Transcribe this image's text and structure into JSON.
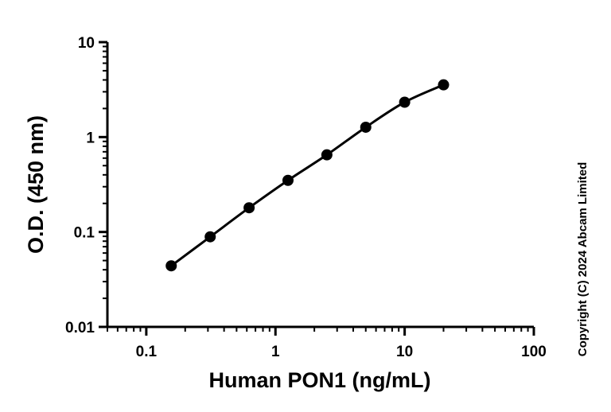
{
  "chart_data": {
    "type": "scatter",
    "xlabel": "Human PON1 (ng/mL)",
    "ylabel": "O.D. (450 nm)",
    "x_scale": "log",
    "y_scale": "log",
    "xlim": [
      0.05,
      100
    ],
    "ylim": [
      0.01,
      10
    ],
    "x_ticks": [
      {
        "value": 0.1,
        "label": "0.1"
      },
      {
        "value": 1,
        "label": "1"
      },
      {
        "value": 10,
        "label": "10"
      },
      {
        "value": 100,
        "label": "100"
      }
    ],
    "y_ticks": [
      {
        "value": 0.01,
        "label": "0.01"
      },
      {
        "value": 0.1,
        "label": "0.1"
      },
      {
        "value": 1,
        "label": "1"
      },
      {
        "value": 10,
        "label": "10"
      }
    ],
    "grid": false,
    "series": [
      {
        "x": [
          0.156,
          0.3125,
          0.625,
          1.25,
          2.5,
          5,
          10,
          20
        ],
        "y": [
          0.044,
          0.089,
          0.18,
          0.35,
          0.65,
          1.27,
          2.33,
          3.55
        ],
        "style": "markers with fitted curve",
        "color": "#000000"
      }
    ],
    "annotation": "Copyright (C) 2024 Abcam Limited"
  }
}
